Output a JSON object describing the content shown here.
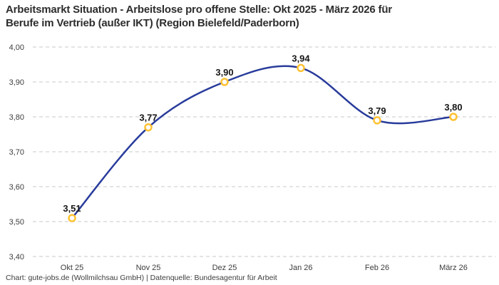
{
  "title": {
    "line1": "Arbeitsmarkt Situation - Arbeitslose pro offene Stelle: Okt 2025 - März 2026 für",
    "line2": "Berufe im Vertrieb (außer IKT) (Region Bielefeld/Paderborn)"
  },
  "footer": {
    "text": "Chart: gute-jobs.de (Wollmilchsau GmbH) | Datenquelle: Bundesagentur für Arbeit"
  },
  "chart_data": {
    "type": "line",
    "title": "Arbeitsmarkt Situation - Arbeitslose pro offene Stelle: Okt 2025 - März 2026 für Berufe im Vertrieb (außer IKT) (Region Bielefeld/Paderborn)",
    "categories": [
      "Okt 25",
      "Nov 25",
      "Dez 25",
      "Jan 26",
      "Feb 26",
      "März 26"
    ],
    "values": [
      3.51,
      3.77,
      3.9,
      3.94,
      3.79,
      3.8
    ],
    "value_labels": [
      "3,51",
      "3,77",
      "3,90",
      "3,94",
      "3,79",
      "3,80"
    ],
    "xlabel": "",
    "ylabel": "",
    "ylim": [
      3.4,
      4.0
    ],
    "y_ticks": [
      {
        "value": 3.4,
        "label": "3,40"
      },
      {
        "value": 3.5,
        "label": "3,50"
      },
      {
        "value": 3.6,
        "label": "3,60"
      },
      {
        "value": 3.7,
        "label": "3,70"
      },
      {
        "value": 3.8,
        "label": "3,80"
      },
      {
        "value": 3.9,
        "label": "3,90"
      },
      {
        "value": 4.0,
        "label": "4,00"
      }
    ],
    "grid": "horizontal-dashed",
    "legend": "none",
    "line_style": "smooth",
    "colors": {
      "line": "#283b9b",
      "marker_stroke": "#ffc233",
      "marker_fill": "#ffffff",
      "grid": "#c9c9c9",
      "tick_text": "#3d3d3d",
      "value_label_text": "#161616"
    }
  }
}
